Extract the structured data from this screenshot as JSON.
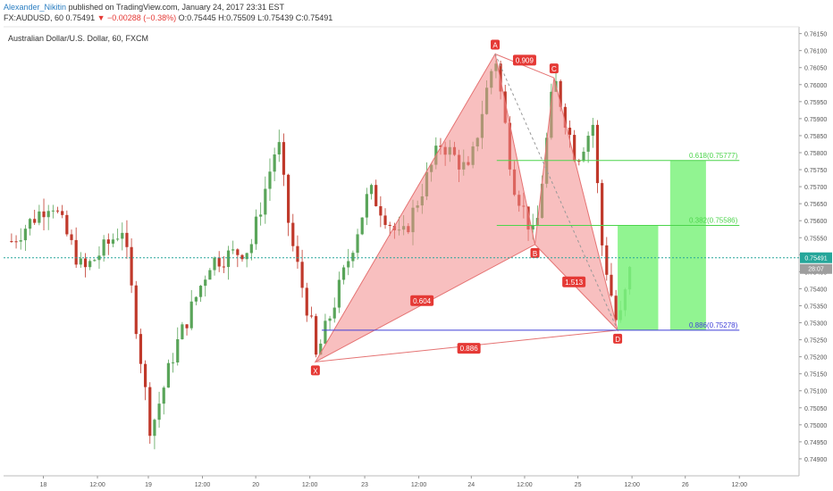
{
  "header": {
    "author": "Alexander_Nikitin",
    "published": "published on TradingView.com, January 24, 2017 23:31 EST",
    "line2_symbol": "FX:AUDUSD, 60",
    "line2_last": "0.75491",
    "line2_change": "▼ −0.00288 (−0.38%)",
    "line2_ohlc": "O:0.75445 H:0.75509 L:0.75439 C:0.75491"
  },
  "symbol_title": "Australian Dollar/U.S. Dollar, 60, FXCM",
  "colors": {
    "up": "#5aa55a",
    "down": "#c0392b",
    "pattern": "#f28b8b",
    "fib": "#4cd44c",
    "fib_box": "#7ef27e",
    "base_line": "#3f3fd8",
    "last": "#26a69a"
  },
  "chart_data": {
    "type": "candlestick",
    "symbol": "FX:AUDUSD",
    "interval": "60",
    "ylim": [
      0.7485,
      0.7617
    ],
    "y_ticks": [
      "0.76150",
      "0.76100",
      "0.76050",
      "0.76000",
      "0.75950",
      "0.75900",
      "0.75850",
      "0.75800",
      "0.75750",
      "0.75700",
      "0.75650",
      "0.75600",
      "0.75550",
      "0.75500",
      "0.75450",
      "0.75400",
      "0.75350",
      "0.75300",
      "0.75250",
      "0.75200",
      "0.75150",
      "0.75100",
      "0.75050",
      "0.75000",
      "0.74950",
      "0.74900"
    ],
    "x_ticks": [
      {
        "label": "18",
        "t": 0.05
      },
      {
        "label": "12:00",
        "t": 0.118
      },
      {
        "label": "19",
        "t": 0.182
      },
      {
        "label": "12:00",
        "t": 0.25
      },
      {
        "label": "20",
        "t": 0.317
      },
      {
        "label": "12:00",
        "t": 0.385
      },
      {
        "label": "23",
        "t": 0.454
      },
      {
        "label": "12:00",
        "t": 0.522
      },
      {
        "label": "24",
        "t": 0.588
      },
      {
        "label": "12:00",
        "t": 0.655
      },
      {
        "label": "25",
        "t": 0.722
      },
      {
        "label": "12:00",
        "t": 0.79
      },
      {
        "label": "26",
        "t": 0.857
      },
      {
        "label": "12:00",
        "t": 0.925
      }
    ],
    "last_price": "0.75491",
    "countdown": "28:07",
    "harmonic": {
      "points": [
        {
          "label": "X",
          "t": 0.392,
          "price": 0.75185
        },
        {
          "label": "A",
          "t": 0.618,
          "price": 0.7609
        },
        {
          "label": "B",
          "t": 0.668,
          "price": 0.7553
        },
        {
          "label": "C",
          "t": 0.692,
          "price": 0.7602
        },
        {
          "label": "D",
          "t": 0.772,
          "price": 0.75278
        }
      ],
      "ratios": [
        {
          "text": "0.909",
          "t": 0.655,
          "price": 0.76072
        },
        {
          "text": "0.604",
          "t": 0.526,
          "price": 0.75365
        },
        {
          "text": "1.513",
          "t": 0.717,
          "price": 0.7542
        },
        {
          "text": "0.886",
          "t": 0.585,
          "price": 0.75225
        }
      ]
    },
    "fib_levels": [
      {
        "label": "0.618(0.75777)",
        "price": 0.75777,
        "t0": 0.62,
        "t1": 0.925
      },
      {
        "label": "0.382(0.75586)",
        "price": 0.75586,
        "t0": 0.62,
        "t1": 0.925
      },
      {
        "label": "0.886(0.75278)",
        "price": 0.75278,
        "t0": 0.4,
        "t1": 0.925
      }
    ],
    "fib_boxes": [
      {
        "t0": 0.772,
        "t1": 0.823,
        "p0": 0.75278,
        "p1": 0.75586
      },
      {
        "t0": 0.838,
        "t1": 0.883,
        "p0": 0.75278,
        "p1": 0.75777
      }
    ]
  }
}
